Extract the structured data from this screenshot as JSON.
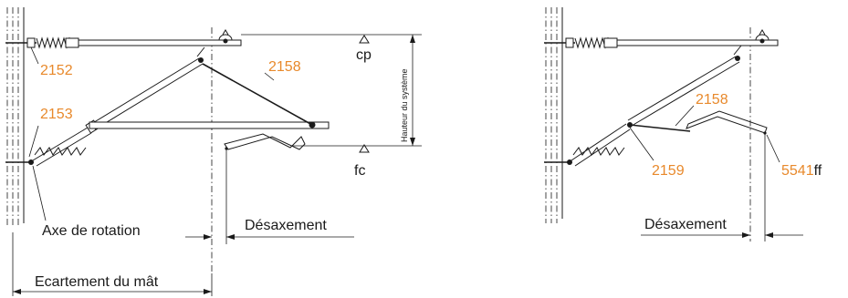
{
  "accent_color": "#e8892b",
  "left": {
    "refs": {
      "r2152": "2152",
      "r2153": "2153",
      "r2158": "2158"
    },
    "labels": {
      "cp": "cp",
      "fc": "fc",
      "system_height": "Hauteur du système",
      "rotation_axis": "Axe de rotation",
      "offset": "Désaxement",
      "mast_spacing": "Ecartement du mât"
    }
  },
  "right": {
    "refs": {
      "r2158": "2158",
      "r2159": "2159",
      "r5541_num": "5541",
      "r5541_suffix": "ff"
    },
    "labels": {
      "offset": "Désaxement"
    }
  }
}
